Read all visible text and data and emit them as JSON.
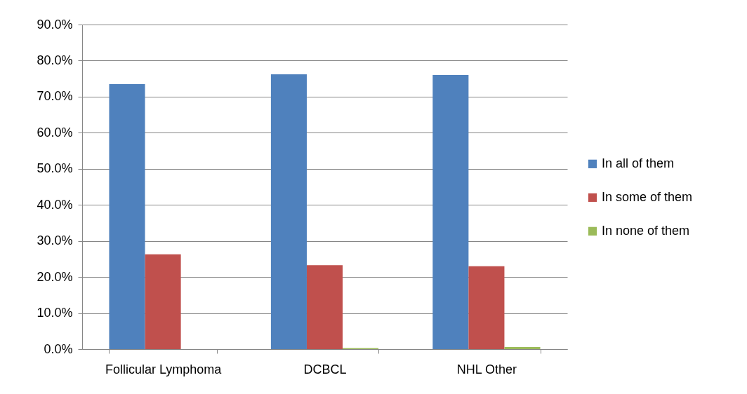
{
  "chart_data": {
    "type": "bar",
    "categories": [
      "Follicular Lymphoma",
      "DCBCL",
      "NHL Other"
    ],
    "series": [
      {
        "name": "In all of them",
        "color": "#4f81bd",
        "values": [
          73.5,
          76.2,
          76.0
        ]
      },
      {
        "name": "In some of them",
        "color": "#c0504d",
        "values": [
          26.3,
          23.3,
          23.0
        ]
      },
      {
        "name": "In none of them",
        "color": "#9bbb59",
        "values": [
          0,
          0.3,
          0.6
        ]
      }
    ],
    "ylim": [
      0,
      90
    ],
    "yticks": [
      {
        "value": 0,
        "label": "0.0%"
      },
      {
        "value": 10,
        "label": "10.0%"
      },
      {
        "value": 20,
        "label": "20.0%"
      },
      {
        "value": 30,
        "label": "30.0%"
      },
      {
        "value": 40,
        "label": "40.0%"
      },
      {
        "value": 50,
        "label": "50.0%"
      },
      {
        "value": 60,
        "label": "60.0%"
      },
      {
        "value": 70,
        "label": "70.0%"
      },
      {
        "value": 80,
        "label": "80.0%"
      },
      {
        "value": 90,
        "label": "90.0%"
      }
    ],
    "grid": "y",
    "legend": "right"
  }
}
